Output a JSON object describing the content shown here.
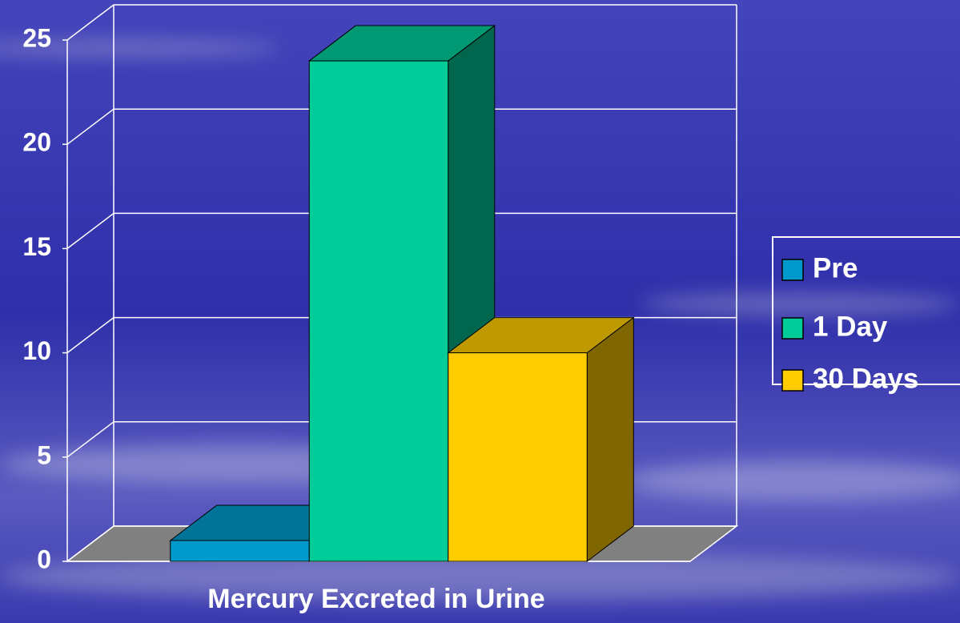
{
  "chart_data": {
    "type": "bar3d",
    "x_label": "Mercury Excreted in Urine",
    "categories": [
      null
    ],
    "series": [
      {
        "name": "Pre",
        "color": "#0099cc",
        "values": [
          1
        ]
      },
      {
        "name": "1 Day",
        "color": "#00cc99",
        "values": [
          24
        ]
      },
      {
        "name": "30 Days",
        "color": "#ffcc00",
        "values": [
          10
        ]
      }
    ],
    "ylim": [
      0,
      25
    ],
    "yticks": [
      0,
      5,
      10,
      15,
      20,
      25
    ],
    "grid": true,
    "legend": "right"
  }
}
